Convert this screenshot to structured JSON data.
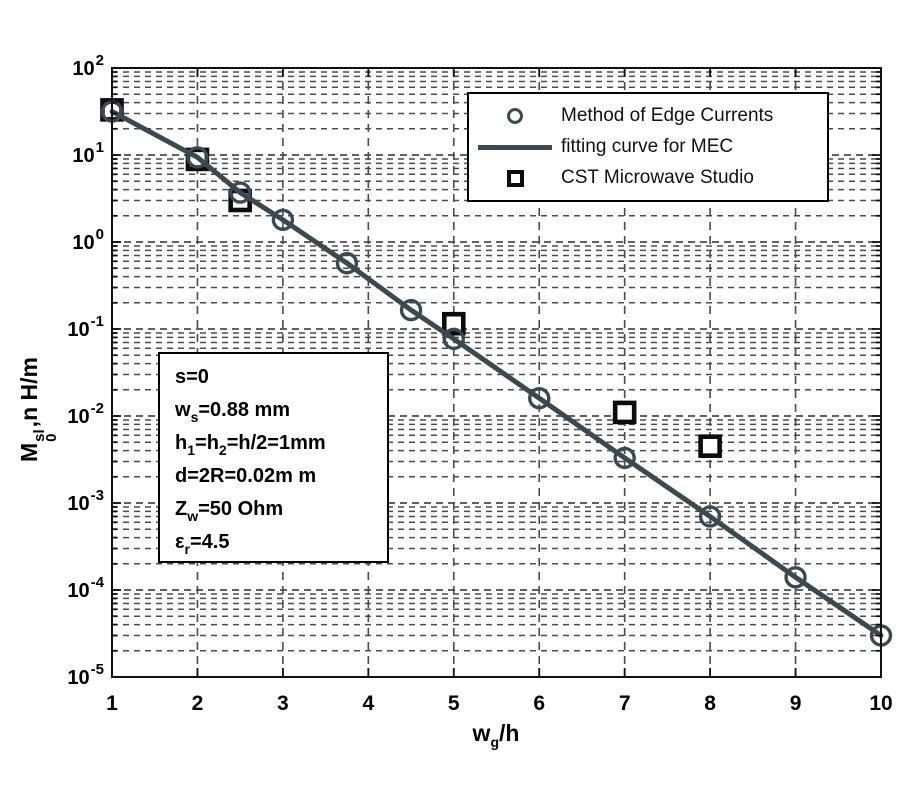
{
  "figure": {
    "background": "#ffffff",
    "curve_color": "#3b4950",
    "square_color": "#0c0c0c",
    "grid_color": "#4b4b4b",
    "axis_color": "#111111"
  },
  "chart_data": {
    "type": "line",
    "title": "",
    "xlabel": "w_g/h",
    "ylabel": "M_0^sl, nH/m",
    "xlabel_segments": [
      {
        "t": "w"
      },
      {
        "sub": "g"
      },
      {
        "t": "/h"
      }
    ],
    "ylabel_segments": [
      {
        "t": "M"
      },
      {
        "supsub": {
          "sup": "sl",
          "sub": "0"
        }
      },
      {
        "t": ",n H/m"
      }
    ],
    "xlim": [
      1,
      10
    ],
    "ylim_log10": [
      -5,
      2
    ],
    "x_ticks": [
      1,
      2,
      3,
      4,
      5,
      6,
      7,
      8,
      9,
      10
    ],
    "y_tick_base": "10",
    "y_tick_exponents": [
      2,
      1,
      0,
      -1,
      -2,
      -3,
      -4,
      -5
    ],
    "grid": "major and minor, dashed, log y",
    "legend_position": "upper right inside",
    "series": [
      {
        "name": "Method of Edge Currents",
        "type": "scatter",
        "marker": "circle",
        "color": "#3b4950",
        "x": [
          1,
          2,
          2.5,
          3,
          3.75,
          4.5,
          5,
          6,
          7,
          8,
          9,
          10
        ],
        "y": [
          31.6,
          9.4,
          3.7,
          1.8,
          0.57,
          0.165,
          0.077,
          0.016,
          0.0033,
          0.0007,
          0.00014,
          3e-05
        ]
      },
      {
        "name": "fitting curve for MEC",
        "type": "line",
        "color": "#3b4950",
        "x": [
          1,
          2,
          2.5,
          3,
          3.75,
          4.5,
          5,
          6,
          7,
          8,
          9,
          10
        ],
        "y": [
          31.6,
          9.4,
          3.7,
          1.8,
          0.57,
          0.165,
          0.077,
          0.016,
          0.0033,
          0.0007,
          0.00014,
          3e-05
        ]
      },
      {
        "name": "CST Microwave Studio",
        "type": "scatter",
        "marker": "square",
        "color": "#0c0c0c",
        "x": [
          1,
          2,
          2.5,
          5,
          7,
          8
        ],
        "y": [
          33,
          8.9,
          3.0,
          0.115,
          0.011,
          0.0045
        ]
      }
    ]
  },
  "legend": {
    "entries": [
      {
        "marker": "circle",
        "label": "Method of Edge Currents"
      },
      {
        "marker": "line",
        "label": "fitting curve for MEC"
      },
      {
        "marker": "square",
        "label": "CST Microwave Studio"
      }
    ]
  },
  "annotation_box": {
    "lines": [
      [
        {
          "t": "s=0"
        }
      ],
      [
        {
          "t": "w"
        },
        {
          "sub": "s"
        },
        {
          "t": "=0.88 mm"
        }
      ],
      [
        {
          "t": "h"
        },
        {
          "sub": "1"
        },
        {
          "t": "=h"
        },
        {
          "sub": "2"
        },
        {
          "t": "=h/2=1mm"
        }
      ],
      [
        {
          "t": "d=2R=0.02m m"
        }
      ],
      [
        {
          "t": "Z"
        },
        {
          "sub": "w"
        },
        {
          "t": "=50 Ohm"
        }
      ],
      [
        {
          "t": "ε"
        },
        {
          "sub": "r"
        },
        {
          "t": "=4.5"
        }
      ]
    ]
  }
}
